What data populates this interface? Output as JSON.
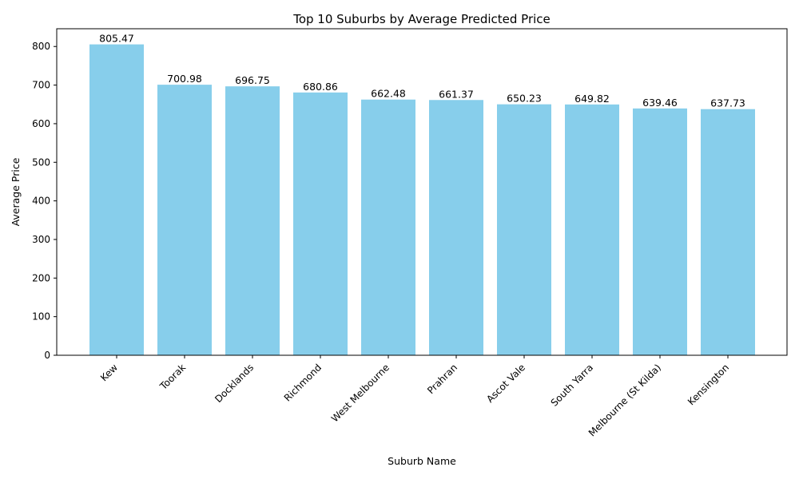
{
  "chart_data": {
    "type": "bar",
    "title": "Top 10 Suburbs by Average Predicted Price",
    "xlabel": "Suburb Name",
    "ylabel": "Average Price",
    "categories": [
      "Kew",
      "Toorak",
      "Docklands",
      "Richmond",
      "West Melbourne",
      "Prahran",
      "Ascot Vale",
      "South Yarra",
      "Melbourne (St Kilda)",
      "Kensington"
    ],
    "values": [
      805.47,
      700.98,
      696.75,
      680.86,
      662.48,
      661.37,
      650.23,
      649.82,
      639.46,
      637.73
    ],
    "data_labels": [
      "805.47",
      "700.98",
      "696.75",
      "680.86",
      "662.48",
      "661.37",
      "650.23",
      "649.82",
      "639.46",
      "637.73"
    ],
    "ylim": [
      0,
      846
    ],
    "yticks": [
      0,
      100,
      200,
      300,
      400,
      500,
      600,
      700,
      800
    ],
    "bar_color": "#87CEEB",
    "grid": false,
    "legend": "none"
  }
}
